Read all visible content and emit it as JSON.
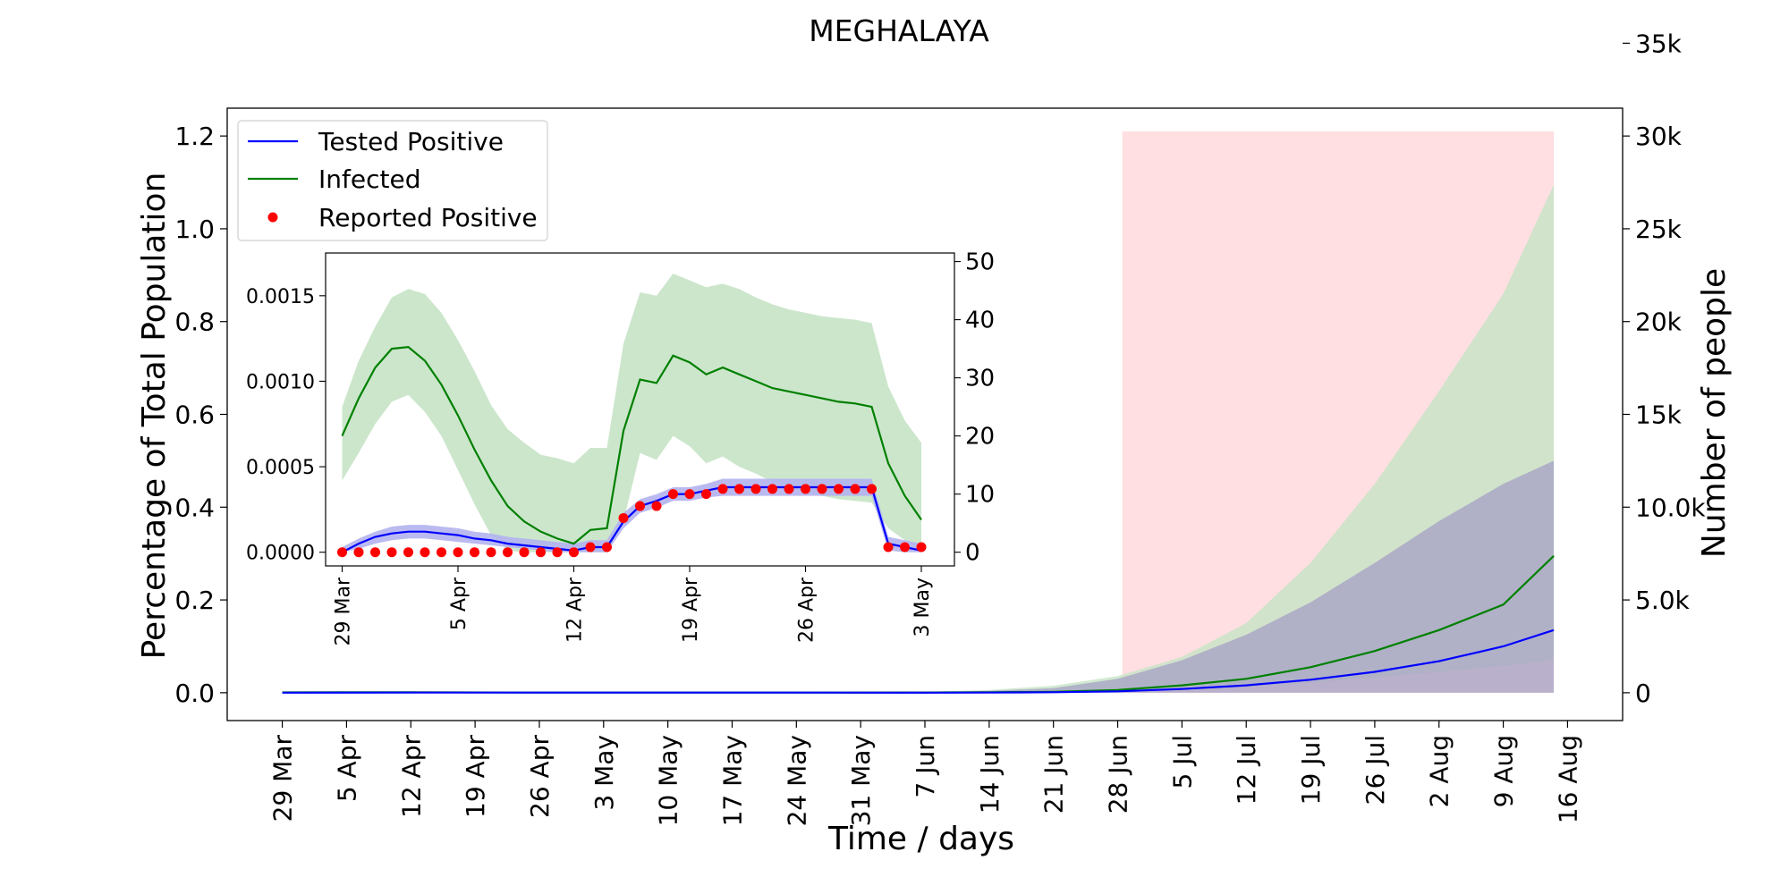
{
  "chart_data": [
    {
      "type": "line",
      "panel": "main",
      "title": "MEGHALAYA",
      "xlabel": "Time / days",
      "ylabel_left": "Percentage of Total Population",
      "ylabel_right": "Number of people",
      "x_tick_labels": [
        "29 Mar",
        "5 Apr",
        "12 Apr",
        "19 Apr",
        "26 Apr",
        "3 May",
        "10 May",
        "17 May",
        "24 May",
        "31 May",
        "7 Jun",
        "14 Jun",
        "21 Jun",
        "28 Jun",
        "5 Jul",
        "12 Jul",
        "19 Jul",
        "26 Jul",
        "2 Aug",
        "9 Aug",
        "16 Aug"
      ],
      "x_range_days": [
        -6,
        146
      ],
      "ylim_left": [
        -0.06,
        1.26
      ],
      "y_ticks_left": [
        "0.0",
        "0.2",
        "0.4",
        "0.6",
        "0.8",
        "1.0",
        "1.2"
      ],
      "y_ticks_right": [
        {
          "label": "0",
          "pct": 0.0
        },
        {
          "label": "5.0k",
          "pct": 0.2
        },
        {
          "label": "10.0k",
          "pct": 0.4
        },
        {
          "label": "15k",
          "pct": 0.6
        },
        {
          "label": "20k",
          "pct": 0.8
        },
        {
          "label": "25k",
          "pct": 1.0
        },
        {
          "label": "30k",
          "pct": 1.2
        },
        {
          "label": "35k",
          "pct": 1.4
        }
      ],
      "right_axis_people_per_percent": 25000,
      "shaded_projection": {
        "x_start_day": 91.5,
        "x_end_day": 138.5,
        "y_top": 1.21,
        "color": "#ffdfe1"
      },
      "legend": {
        "placement": "top-left",
        "entries": [
          "Tested Positive",
          "Infected",
          "Reported Positive"
        ]
      },
      "grid": false,
      "series": [
        {
          "name": "Infected",
          "color": "#008000",
          "band_color": "#c6e3c6",
          "x_days": [
            0,
            14,
            28,
            42,
            56,
            70,
            77,
            84,
            91,
            98,
            105,
            112,
            119,
            126,
            133,
            138.5
          ],
          "values": [
            0.0007,
            0.0011,
            0.0003,
            0.0003,
            0.0003,
            0.0005,
            0.001,
            0.002,
            0.006,
            0.016,
            0.03,
            0.055,
            0.09,
            0.135,
            0.19,
            0.295
          ],
          "lower": [
            0.0004,
            0.0007,
            0.0001,
            0.0001,
            0.0001,
            0.0002,
            0.0004,
            0.0008,
            0.0025,
            0.007,
            0.013,
            0.022,
            0.033,
            0.045,
            0.058,
            0.07
          ],
          "upper": [
            0.0012,
            0.0016,
            0.0006,
            0.0008,
            0.001,
            0.002,
            0.006,
            0.015,
            0.036,
            0.077,
            0.15,
            0.28,
            0.45,
            0.65,
            0.86,
            1.095
          ]
        },
        {
          "name": "Tested Positive",
          "color": "#0000ff",
          "band_color": "#a7a4c6",
          "x_days": [
            0,
            14,
            28,
            42,
            56,
            70,
            77,
            84,
            91,
            98,
            105,
            112,
            119,
            126,
            133,
            138.5
          ],
          "values": [
            0.0001,
            0.0003,
            0.0003,
            0.0003,
            0.0003,
            0.0002,
            0.0004,
            0.001,
            0.003,
            0.008,
            0.016,
            0.028,
            0.045,
            0.068,
            0.1,
            0.135
          ],
          "lower": [
            0,
            0,
            0,
            0,
            0,
            0,
            0,
            0,
            0,
            0,
            0,
            0,
            0,
            0,
            0,
            0
          ],
          "upper": [
            0.0002,
            0.0004,
            0.0004,
            0.0004,
            0.0004,
            0.001,
            0.004,
            0.01,
            0.03,
            0.07,
            0.125,
            0.195,
            0.28,
            0.37,
            0.45,
            0.5
          ]
        },
        {
          "name": "Reported Positive",
          "color": "#ff0000",
          "style": "points",
          "x_days": [
            0,
            7,
            14,
            21,
            28,
            35
          ],
          "values": [
            0.0,
            0.0,
            0.0,
            0.0,
            0.0,
            0.0
          ]
        }
      ]
    },
    {
      "type": "line",
      "panel": "inset",
      "x_tick_labels": [
        "29 Mar",
        "5 Apr",
        "12 Apr",
        "19 Apr",
        "26 Apr",
        "3 May"
      ],
      "x_range_days": [
        -1,
        37
      ],
      "ylim_left": [
        -8e-05,
        0.00175
      ],
      "y_ticks_left": [
        {
          "label": "0.0000",
          "value": 0.0
        },
        {
          "label": "0.0005",
          "value": 0.0005
        },
        {
          "label": "0.0010",
          "value": 0.001
        },
        {
          "label": "0.0015",
          "value": 0.0015
        }
      ],
      "y_ticks_right": [
        "0",
        "10",
        "20",
        "30",
        "40",
        "50"
      ],
      "right_axis_people_per_unit": 29412,
      "series": [
        {
          "name": "Infected",
          "color": "#008000",
          "band_color": "#c6e3c6",
          "x_days": [
            0,
            1,
            2,
            3,
            4,
            5,
            6,
            7,
            8,
            9,
            10,
            11,
            12,
            13,
            14,
            15,
            16,
            17,
            18,
            19,
            20,
            21,
            22,
            23,
            24,
            25,
            26,
            27,
            28,
            29,
            30,
            31,
            32,
            33,
            34,
            35
          ],
          "values": [
            0.00068,
            0.0009,
            0.00108,
            0.00119,
            0.0012,
            0.00112,
            0.00098,
            0.0008,
            0.0006,
            0.00042,
            0.00027,
            0.00018,
            0.00012,
            8e-05,
            5e-05,
            0.00013,
            0.00014,
            0.00071,
            0.00101,
            0.00099,
            0.00115,
            0.00111,
            0.00104,
            0.00108,
            0.00104,
            0.001,
            0.00096,
            0.00094,
            0.00092,
            0.0009,
            0.00088,
            0.00087,
            0.00085,
            0.00052,
            0.00033,
            0.00019
          ],
          "lower": [
            0.00042,
            0.00058,
            0.00075,
            0.00088,
            0.00092,
            0.00082,
            0.00068,
            0.00048,
            0.00028,
            0.0001,
            1e-05,
            0.0,
            0.0,
            0.0,
            0.0,
            0.0,
            0.0,
            0.00018,
            0.00058,
            0.00054,
            0.00068,
            0.00062,
            0.00052,
            0.00056,
            0.0005,
            0.00046,
            0.00041,
            0.00038,
            0.00035,
            0.00033,
            0.00031,
            0.0003,
            0.00029,
            0.00014,
            7e-05,
            2e-05
          ],
          "upper": [
            0.00085,
            0.00112,
            0.00132,
            0.00149,
            0.00154,
            0.00151,
            0.0014,
            0.00124,
            0.00106,
            0.00086,
            0.00072,
            0.00064,
            0.00057,
            0.00055,
            0.00052,
            0.00061,
            0.00061,
            0.00122,
            0.00152,
            0.0015,
            0.00163,
            0.00159,
            0.00155,
            0.00157,
            0.00154,
            0.00149,
            0.00145,
            0.00142,
            0.0014,
            0.00138,
            0.00137,
            0.00136,
            0.00134,
            0.00097,
            0.00077,
            0.00064
          ]
        },
        {
          "name": "Tested Positive",
          "color": "#0000ff",
          "band_color": "#b3b3ef",
          "x_days": [
            0,
            1,
            2,
            3,
            4,
            5,
            6,
            7,
            8,
            9,
            10,
            11,
            12,
            13,
            14,
            15,
            16,
            17,
            18,
            19,
            20,
            21,
            22,
            23,
            24,
            25,
            26,
            27,
            28,
            29,
            30,
            31,
            32,
            33,
            34,
            35
          ],
          "values": [
            0.0,
            5e-05,
            9e-05,
            0.00011,
            0.00012,
            0.00012,
            0.00011,
            0.0001,
            8e-05,
            7e-05,
            5e-05,
            4e-05,
            3e-05,
            2e-05,
            1e-05,
            3e-05,
            3e-05,
            0.00018,
            0.00027,
            0.0003,
            0.00034,
            0.00034,
            0.00036,
            0.00038,
            0.00038,
            0.00038,
            0.00038,
            0.00038,
            0.00038,
            0.00038,
            0.00038,
            0.00038,
            0.00038,
            5e-05,
            3e-05,
            1e-05
          ],
          "lower": [
            0.0,
            2e-05,
            5e-05,
            7e-05,
            8e-05,
            8e-05,
            7e-05,
            6e-05,
            5e-05,
            4e-05,
            3e-05,
            2e-05,
            1e-05,
            0.0,
            0.0,
            0.0,
            0.0,
            0.00014,
            0.00023,
            0.00026,
            0.0003,
            0.0003,
            0.00032,
            0.00033,
            0.00033,
            0.00033,
            0.00033,
            0.00033,
            0.00033,
            0.00033,
            0.00033,
            0.00033,
            0.00033,
            1e-05,
            0.0,
            0.0
          ],
          "upper": [
            3e-05,
            8e-05,
            0.00012,
            0.00015,
            0.00016,
            0.00016,
            0.00015,
            0.00014,
            0.00012,
            0.00011,
            9e-05,
            8e-05,
            7e-05,
            6e-05,
            5e-05,
            7e-05,
            7e-05,
            0.00023,
            0.00031,
            0.00034,
            0.00038,
            0.00038,
            0.0004,
            0.00043,
            0.00043,
            0.00043,
            0.00043,
            0.00043,
            0.00043,
            0.00043,
            0.00043,
            0.00043,
            0.00043,
            9e-05,
            7e-05,
            5e-05
          ]
        },
        {
          "name": "Reported Positive",
          "color": "#ff0000",
          "style": "points",
          "x_days": [
            0,
            1,
            2,
            3,
            4,
            5,
            6,
            7,
            8,
            9,
            10,
            11,
            12,
            13,
            14,
            15,
            16,
            17,
            18,
            19,
            20,
            21,
            22,
            23,
            24,
            25,
            26,
            27,
            28,
            29,
            30,
            31,
            32,
            33,
            34,
            35
          ],
          "values": [
            0.0,
            0.0,
            0.0,
            0.0,
            0.0,
            0.0,
            0.0,
            0.0,
            0.0,
            0.0,
            0.0,
            0.0,
            0.0,
            0.0,
            0.0,
            3e-05,
            3e-05,
            0.0002,
            0.00027,
            0.00027,
            0.00034,
            0.00034,
            0.00034,
            0.00037,
            0.00037,
            0.00037,
            0.00037,
            0.00037,
            0.00037,
            0.00037,
            0.00037,
            0.00037,
            0.00037,
            3e-05,
            3e-05,
            3e-05
          ]
        }
      ]
    }
  ]
}
